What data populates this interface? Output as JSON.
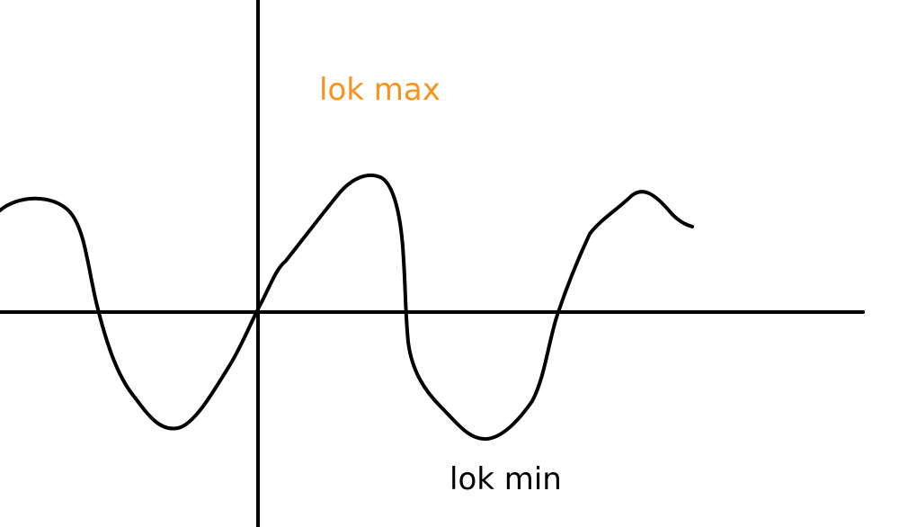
{
  "labels": {
    "local_max": "lok max",
    "local_min": "lok min"
  },
  "colors": {
    "local_max_label": "#f7931e",
    "local_min_label": "#000000",
    "curve": "#000000",
    "axes": "#000000",
    "background": "#ffffff"
  }
}
